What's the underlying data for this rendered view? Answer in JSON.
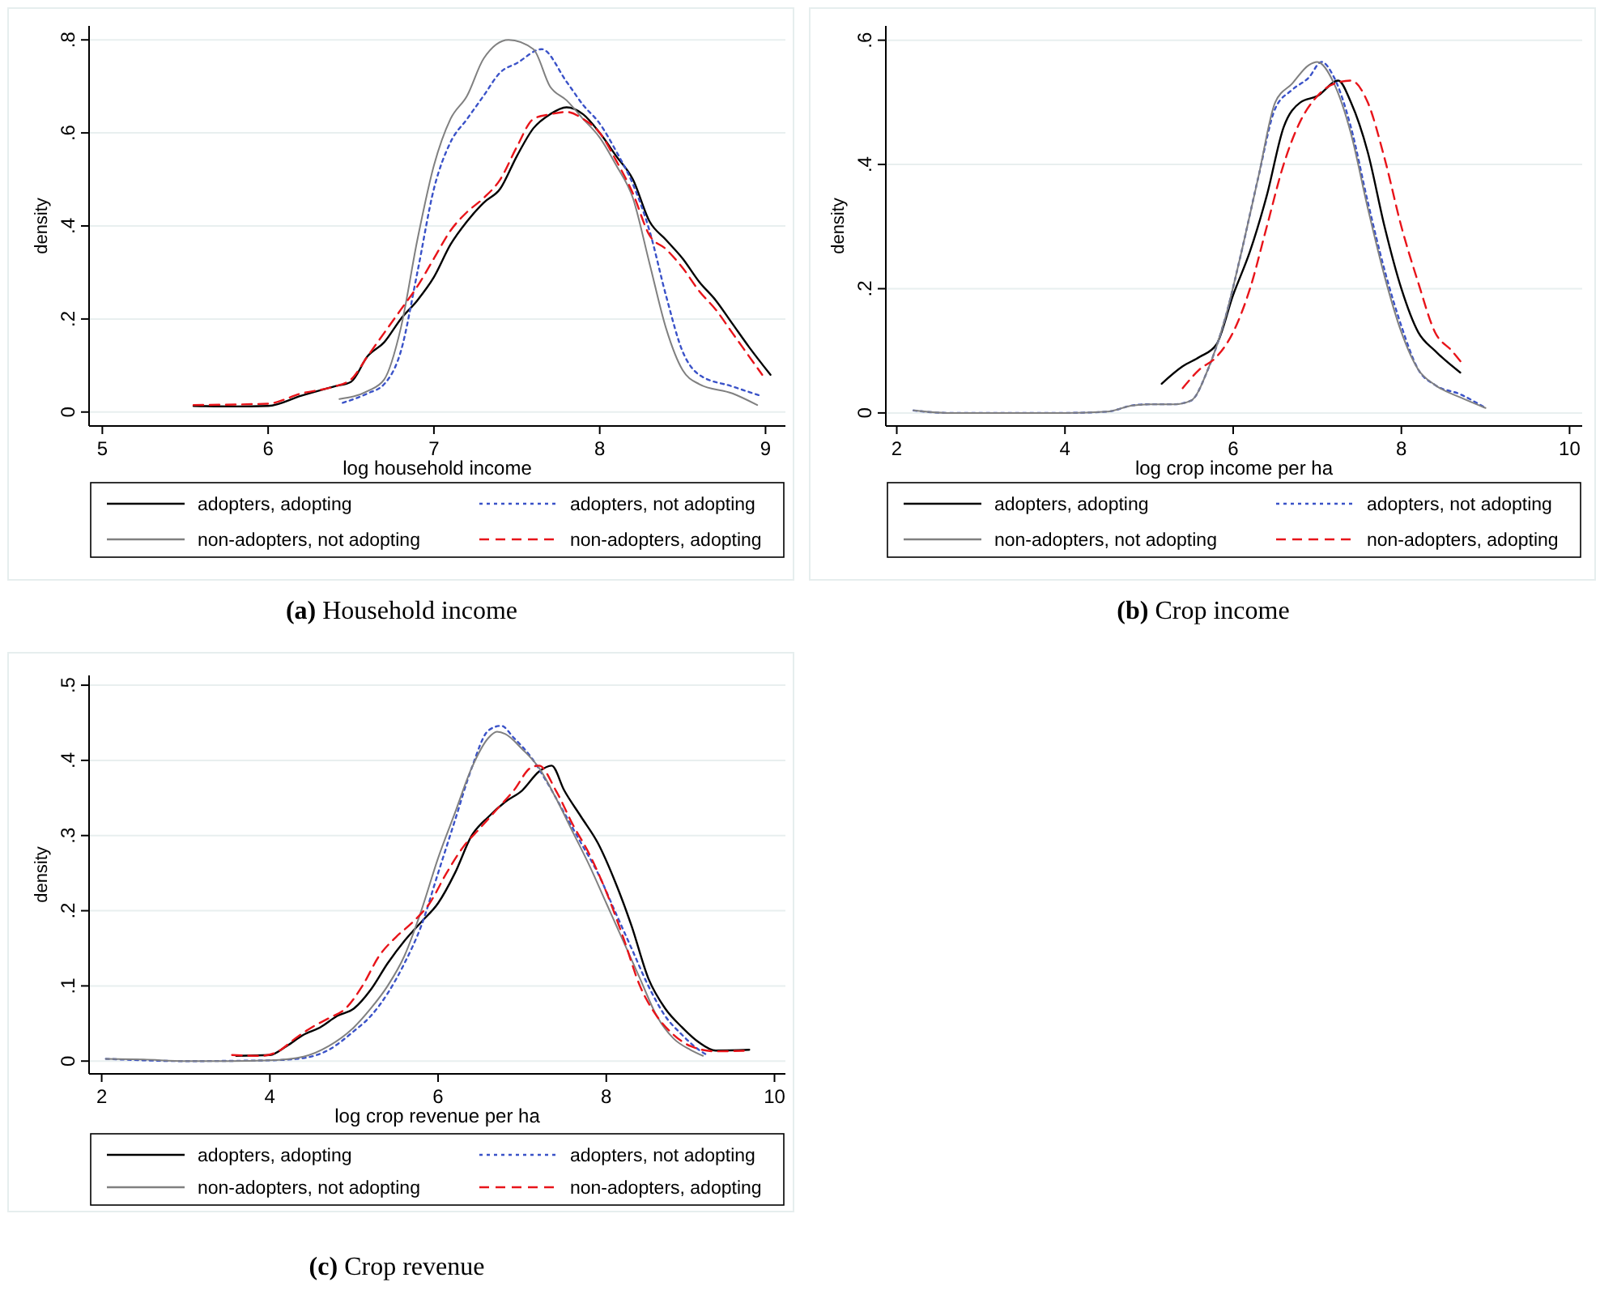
{
  "chart_data": [
    {
      "type": "line",
      "xlabel": "log household income",
      "ylabel": "density",
      "annotations": [
        "(a) Household income"
      ],
      "xlim": [
        4.92,
        9.12
      ],
      "xticks": [
        5,
        6,
        7,
        8,
        9
      ],
      "ylim": [
        -0.03,
        0.83
      ],
      "yticks": [
        {
          "value": 0,
          "label": "0"
        },
        {
          "value": 0.2,
          "label": ".2"
        },
        {
          "value": 0.4,
          "label": ".4"
        },
        {
          "value": 0.6,
          "label": ".6"
        },
        {
          "value": 0.8,
          "label": ".8"
        }
      ],
      "grid": "y",
      "legend": "bottom",
      "series": [
        {
          "name": "adopters, adopting",
          "color": "#000000",
          "line_style": "solid",
          "x": [
            5.55,
            5.8,
            6.0,
            6.2,
            6.4,
            6.5,
            6.6,
            6.7,
            6.8,
            6.9,
            7.0,
            7.1,
            7.2,
            7.3,
            7.4,
            7.5,
            7.6,
            7.7,
            7.8,
            7.9,
            8.0,
            8.1,
            8.2,
            8.3,
            8.4,
            8.5,
            8.6,
            8.7,
            8.8,
            8.9,
            9.03
          ],
          "values": [
            0.013,
            0.012,
            0.013,
            0.035,
            0.055,
            0.065,
            0.12,
            0.15,
            0.2,
            0.24,
            0.29,
            0.36,
            0.41,
            0.45,
            0.48,
            0.55,
            0.61,
            0.64,
            0.655,
            0.64,
            0.6,
            0.55,
            0.5,
            0.41,
            0.37,
            0.33,
            0.28,
            0.24,
            0.19,
            0.14,
            0.08
          ]
        },
        {
          "name": "adopters, not adopting",
          "color": "#3a52c8",
          "line_style": "dotted",
          "x": [
            6.45,
            6.6,
            6.7,
            6.8,
            6.9,
            7.0,
            7.1,
            7.2,
            7.3,
            7.4,
            7.5,
            7.65,
            7.8,
            7.9,
            8.0,
            8.1,
            8.2,
            8.3,
            8.4,
            8.5,
            8.6,
            8.8,
            8.97
          ],
          "values": [
            0.02,
            0.04,
            0.06,
            0.13,
            0.3,
            0.48,
            0.58,
            0.63,
            0.68,
            0.73,
            0.75,
            0.78,
            0.71,
            0.66,
            0.62,
            0.56,
            0.49,
            0.39,
            0.25,
            0.13,
            0.08,
            0.055,
            0.035
          ]
        },
        {
          "name": "non-adopters, not adopting",
          "color": "#808080",
          "line_style": "solid",
          "x": [
            6.43,
            6.6,
            6.7,
            6.8,
            6.9,
            7.0,
            7.1,
            7.2,
            7.3,
            7.45,
            7.6,
            7.7,
            7.8,
            7.9,
            8.0,
            8.1,
            8.2,
            8.3,
            8.4,
            8.5,
            8.6,
            8.8,
            8.95
          ],
          "values": [
            0.028,
            0.045,
            0.07,
            0.18,
            0.37,
            0.53,
            0.63,
            0.68,
            0.76,
            0.8,
            0.78,
            0.7,
            0.67,
            0.63,
            0.59,
            0.53,
            0.46,
            0.32,
            0.18,
            0.09,
            0.06,
            0.04,
            0.015
          ]
        },
        {
          "name": "non-adopters, adopting",
          "color": "#e8141a",
          "line_style": "dashed",
          "x": [
            5.55,
            6.0,
            6.2,
            6.4,
            6.5,
            6.6,
            6.7,
            6.8,
            6.9,
            7.0,
            7.1,
            7.2,
            7.3,
            7.4,
            7.5,
            7.6,
            7.7,
            7.8,
            7.9,
            8.0,
            8.1,
            8.2,
            8.3,
            8.4,
            8.5,
            8.6,
            8.7,
            8.8,
            8.9,
            8.98
          ],
          "values": [
            0.015,
            0.018,
            0.04,
            0.055,
            0.07,
            0.12,
            0.17,
            0.22,
            0.27,
            0.33,
            0.39,
            0.43,
            0.46,
            0.5,
            0.57,
            0.63,
            0.64,
            0.645,
            0.63,
            0.6,
            0.54,
            0.47,
            0.38,
            0.35,
            0.31,
            0.26,
            0.22,
            0.17,
            0.12,
            0.08
          ]
        }
      ]
    },
    {
      "type": "line",
      "xlabel": "log crop income per ha",
      "ylabel": "density",
      "annotations": [
        "(b) Crop income"
      ],
      "xlim": [
        1.87,
        10.15
      ],
      "xticks": [
        2,
        4,
        6,
        8,
        10
      ],
      "ylim": [
        -0.021,
        0.623
      ],
      "yticks": [
        {
          "value": 0,
          "label": "0"
        },
        {
          "value": 0.2,
          "label": ".2"
        },
        {
          "value": 0.4,
          "label": ".4"
        },
        {
          "value": 0.6,
          "label": ".6"
        }
      ],
      "grid": "y",
      "legend": "bottom",
      "series": [
        {
          "name": "adopters, adopting",
          "color": "#000000",
          "line_style": "solid",
          "x": [
            5.15,
            5.4,
            5.6,
            5.8,
            6.0,
            6.2,
            6.4,
            6.6,
            6.8,
            7.0,
            7.25,
            7.4,
            7.6,
            7.8,
            8.0,
            8.2,
            8.4,
            8.7
          ],
          "values": [
            0.047,
            0.075,
            0.09,
            0.11,
            0.19,
            0.26,
            0.35,
            0.46,
            0.5,
            0.51,
            0.535,
            0.5,
            0.42,
            0.3,
            0.2,
            0.13,
            0.1,
            0.065
          ]
        },
        {
          "name": "adopters, not adopting",
          "color": "#3a52c8",
          "line_style": "dotted",
          "x": [
            2.2,
            2.6,
            3.0,
            4.0,
            4.5,
            4.8,
            5.0,
            5.3,
            5.5,
            5.7,
            5.9,
            6.1,
            6.3,
            6.5,
            6.7,
            6.9,
            7.05,
            7.2,
            7.4,
            7.6,
            7.8,
            8.0,
            8.2,
            8.4,
            8.7,
            9.0
          ],
          "values": [
            0.004,
            0.0,
            0.0,
            0.0,
            0.002,
            0.012,
            0.014,
            0.014,
            0.02,
            0.07,
            0.15,
            0.26,
            0.38,
            0.49,
            0.52,
            0.54,
            0.565,
            0.54,
            0.46,
            0.34,
            0.23,
            0.14,
            0.07,
            0.045,
            0.03,
            0.008
          ]
        },
        {
          "name": "non-adopters, not adopting",
          "color": "#808080",
          "line_style": "solid",
          "x": [
            2.2,
            2.6,
            3.0,
            4.0,
            4.5,
            4.8,
            5.0,
            5.3,
            5.5,
            5.7,
            5.9,
            6.1,
            6.3,
            6.5,
            6.7,
            6.9,
            7.0,
            7.2,
            7.4,
            7.6,
            7.8,
            8.0,
            8.2,
            8.4,
            8.7,
            9.0
          ],
          "values": [
            0.004,
            0.0,
            0.0,
            0.0,
            0.002,
            0.012,
            0.014,
            0.014,
            0.02,
            0.07,
            0.15,
            0.26,
            0.38,
            0.5,
            0.53,
            0.56,
            0.565,
            0.53,
            0.45,
            0.33,
            0.22,
            0.13,
            0.07,
            0.045,
            0.025,
            0.008
          ]
        },
        {
          "name": "non-adopters, adopting",
          "color": "#e8141a",
          "line_style": "dashed",
          "x": [
            5.4,
            5.6,
            5.8,
            6.0,
            6.2,
            6.4,
            6.6,
            6.8,
            7.0,
            7.2,
            7.4,
            7.6,
            7.8,
            8.0,
            8.2,
            8.4,
            8.6,
            8.75
          ],
          "values": [
            0.04,
            0.07,
            0.09,
            0.13,
            0.2,
            0.3,
            0.4,
            0.47,
            0.51,
            0.53,
            0.535,
            0.5,
            0.41,
            0.3,
            0.21,
            0.13,
            0.1,
            0.075
          ]
        }
      ]
    },
    {
      "type": "line",
      "xlabel": "log crop revenue per ha",
      "ylabel": "density",
      "annotations": [
        "(c) Crop revenue"
      ],
      "xlim": [
        1.85,
        10.13
      ],
      "xticks": [
        2,
        4,
        6,
        8,
        10
      ],
      "ylim": [
        -0.017,
        0.513
      ],
      "yticks": [
        {
          "value": 0,
          "label": "0"
        },
        {
          "value": 0.1,
          "label": ".1"
        },
        {
          "value": 0.2,
          "label": ".2"
        },
        {
          "value": 0.3,
          "label": ".3"
        },
        {
          "value": 0.4,
          "label": ".4"
        },
        {
          "value": 0.5,
          "label": ".5"
        }
      ],
      "grid": "y",
      "legend": "bottom",
      "series": [
        {
          "name": "adopters, adopting",
          "color": "#000000",
          "line_style": "solid",
          "x": [
            3.6,
            4.0,
            4.2,
            4.4,
            4.6,
            4.8,
            5.0,
            5.2,
            5.4,
            5.6,
            5.8,
            6.0,
            6.2,
            6.4,
            6.6,
            6.8,
            7.0,
            7.2,
            7.35,
            7.5,
            7.7,
            7.9,
            8.1,
            8.3,
            8.5,
            8.7,
            8.9,
            9.1,
            9.3,
            9.7
          ],
          "values": [
            0.007,
            0.008,
            0.02,
            0.035,
            0.045,
            0.06,
            0.07,
            0.095,
            0.13,
            0.16,
            0.185,
            0.21,
            0.25,
            0.3,
            0.325,
            0.345,
            0.36,
            0.385,
            0.393,
            0.36,
            0.325,
            0.29,
            0.24,
            0.18,
            0.11,
            0.07,
            0.045,
            0.025,
            0.014,
            0.015
          ]
        },
        {
          "name": "adopters, not adopting",
          "color": "#3a52c8",
          "line_style": "dotted",
          "x": [
            2.05,
            3.0,
            4.0,
            4.4,
            4.7,
            5.0,
            5.2,
            5.4,
            5.6,
            5.8,
            6.0,
            6.2,
            6.4,
            6.6,
            6.75,
            6.9,
            7.1,
            7.3,
            7.5,
            7.7,
            7.9,
            8.1,
            8.3,
            8.5,
            8.7,
            8.9,
            9.1,
            9.2
          ],
          "values": [
            0.003,
            0.0,
            0.001,
            0.004,
            0.015,
            0.04,
            0.06,
            0.09,
            0.13,
            0.18,
            0.25,
            0.32,
            0.39,
            0.44,
            0.446,
            0.43,
            0.405,
            0.37,
            0.33,
            0.29,
            0.25,
            0.2,
            0.15,
            0.1,
            0.06,
            0.035,
            0.015,
            0.008
          ]
        },
        {
          "name": "non-adopters, not adopting",
          "color": "#808080",
          "line_style": "solid",
          "x": [
            2.05,
            2.5,
            3.0,
            3.5,
            4.0,
            4.4,
            4.7,
            5.0,
            5.2,
            5.4,
            5.6,
            5.8,
            6.0,
            6.2,
            6.4,
            6.6,
            6.7,
            6.8,
            7.0,
            7.2,
            7.4,
            7.6,
            7.8,
            8.0,
            8.2,
            8.4,
            8.6,
            8.8,
            9.0,
            9.15
          ],
          "values": [
            0.003,
            0.002,
            0.0,
            0.0,
            0.001,
            0.006,
            0.02,
            0.045,
            0.07,
            0.1,
            0.14,
            0.2,
            0.27,
            0.33,
            0.39,
            0.43,
            0.438,
            0.435,
            0.415,
            0.39,
            0.35,
            0.305,
            0.26,
            0.21,
            0.16,
            0.11,
            0.06,
            0.03,
            0.015,
            0.007
          ]
        },
        {
          "name": "non-adopters, adopting",
          "color": "#e8141a",
          "line_style": "dashed",
          "x": [
            3.55,
            3.9,
            4.1,
            4.3,
            4.5,
            4.7,
            4.9,
            5.1,
            5.3,
            5.5,
            5.7,
            5.9,
            6.1,
            6.3,
            6.5,
            6.7,
            6.9,
            7.1,
            7.2,
            7.4,
            7.6,
            7.8,
            8.0,
            8.2,
            8.4,
            8.6,
            8.8,
            9.0,
            9.3,
            9.7
          ],
          "values": [
            0.008,
            0.007,
            0.013,
            0.03,
            0.045,
            0.057,
            0.07,
            0.1,
            0.14,
            0.165,
            0.185,
            0.21,
            0.25,
            0.285,
            0.31,
            0.335,
            0.36,
            0.39,
            0.393,
            0.36,
            0.315,
            0.275,
            0.225,
            0.165,
            0.1,
            0.06,
            0.035,
            0.02,
            0.013,
            0.014
          ]
        }
      ]
    }
  ]
}
